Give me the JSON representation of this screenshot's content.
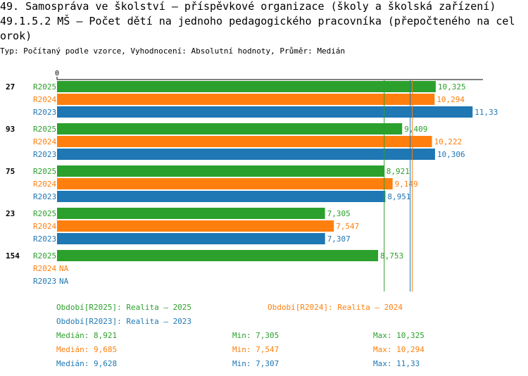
{
  "header": {
    "line1": "49. Samospráva ve školství – příspěvkové organizace (školy a školská zařízení)",
    "line2": "49.1.5.2 MŠ – Počet dětí na jednoho pedagogického pracovníka (přepočteného na cel",
    "line3": "orok)",
    "subtitle": "Typ: Počítaný podle vzorce, Vyhodnocení: Absolutní hodnoty, Průměr: Medián"
  },
  "colors": {
    "R2025": "#2ca02c",
    "R2024": "#ff7f0e",
    "R2023": "#1f77b4"
  },
  "chart_data": {
    "type": "bar",
    "orientation": "horizontal",
    "x_tick_label": "0",
    "series_labels": [
      "R2025",
      "R2024",
      "R2023"
    ],
    "na_label": "NA",
    "groups": [
      {
        "label": "27",
        "values": [
          10.325,
          10.294,
          11.33
        ],
        "display": [
          "10,325",
          "10,294",
          "11,33"
        ]
      },
      {
        "label": "93",
        "values": [
          9.409,
          10.222,
          10.306
        ],
        "display": [
          "9,409",
          "10,222",
          "10,306"
        ]
      },
      {
        "label": "75",
        "values": [
          8.921,
          9.149,
          8.951
        ],
        "display": [
          "8,921",
          "9,149",
          "8,951"
        ]
      },
      {
        "label": "23",
        "values": [
          7.305,
          7.547,
          7.307
        ],
        "display": [
          "7,305",
          "7,547",
          "7,307"
        ]
      },
      {
        "label": "154",
        "values": [
          8.753,
          null,
          null
        ],
        "display": [
          "8,753",
          "NA",
          "NA"
        ]
      }
    ],
    "median_lines": [
      8.921,
      9.685,
      9.628
    ]
  },
  "legend": {
    "period_2025": "Období[R2025]: Realita – 2025",
    "period_2024": "Období[R2024]: Realita – 2024",
    "period_2023": "Období[R2023]: Realita – 2023",
    "stats": [
      {
        "median": "Medián: 8,921",
        "min": "Min: 7,305",
        "max": "Max: 10,325"
      },
      {
        "median": "Medián: 9,685",
        "min": "Min: 7,547",
        "max": "Max: 10,294"
      },
      {
        "median": "Medián: 9,628",
        "min": "Min: 7,307",
        "max": "Max: 11,33"
      }
    ]
  }
}
